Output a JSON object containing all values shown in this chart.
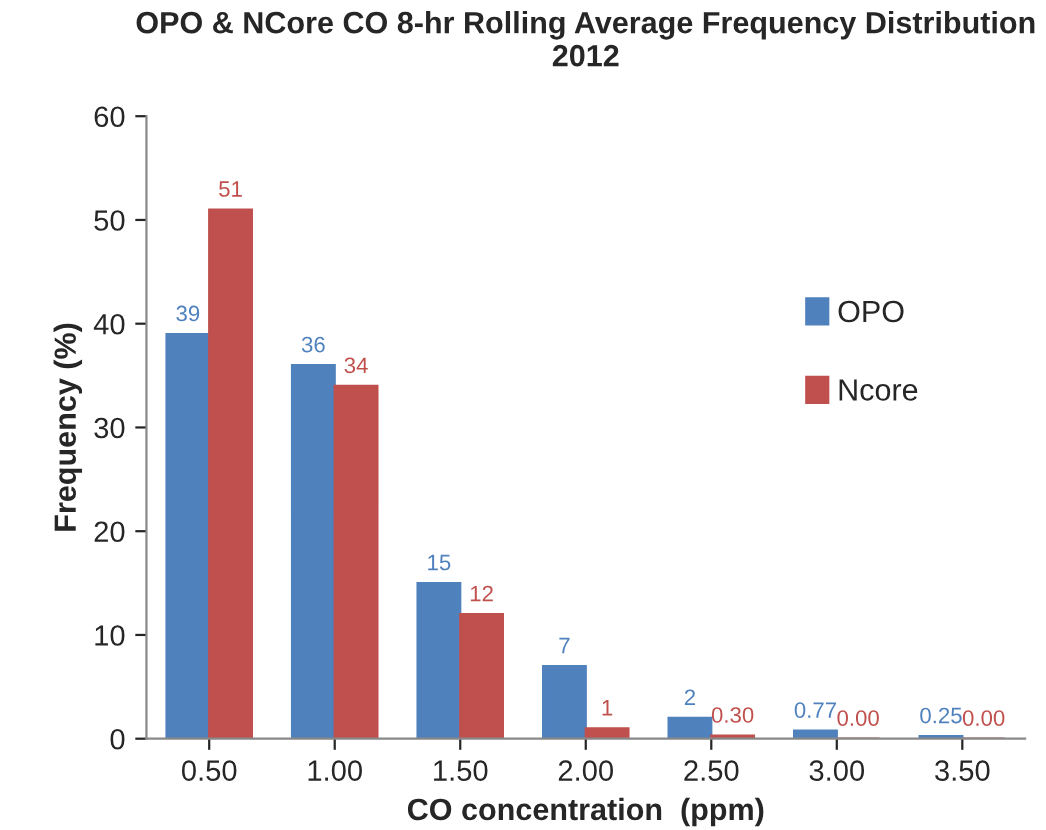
{
  "chart_data": {
    "type": "bar",
    "title": "OPO & NCore CO 8-hr Rolling Average Frequency Distribution\n2012",
    "xlabel": "CO concentration  (ppm)",
    "ylabel": "Frequency (%)",
    "categories": [
      "0.50",
      "1.00",
      "1.50",
      "2.00",
      "2.50",
      "3.00",
      "3.50"
    ],
    "series": [
      {
        "name": "OPO",
        "color": "#4f81bd",
        "values": [
          39,
          36,
          15,
          7,
          2,
          0.77,
          0.25
        ],
        "value_labels": [
          "39",
          "36",
          "15",
          "7",
          "2",
          "0.77",
          "0.25"
        ]
      },
      {
        "name": "Ncore",
        "color": "#c0504d",
        "values": [
          51,
          34,
          12,
          1,
          0.3,
          0.0,
          0.0
        ],
        "value_labels": [
          "51",
          "34",
          "12",
          "1",
          "0.30",
          "0.00",
          "0.00"
        ]
      }
    ],
    "ylim": [
      0,
      60
    ],
    "yticks": [
      0,
      10,
      20,
      30,
      40,
      50,
      60
    ],
    "grid": false,
    "legend": "right"
  }
}
